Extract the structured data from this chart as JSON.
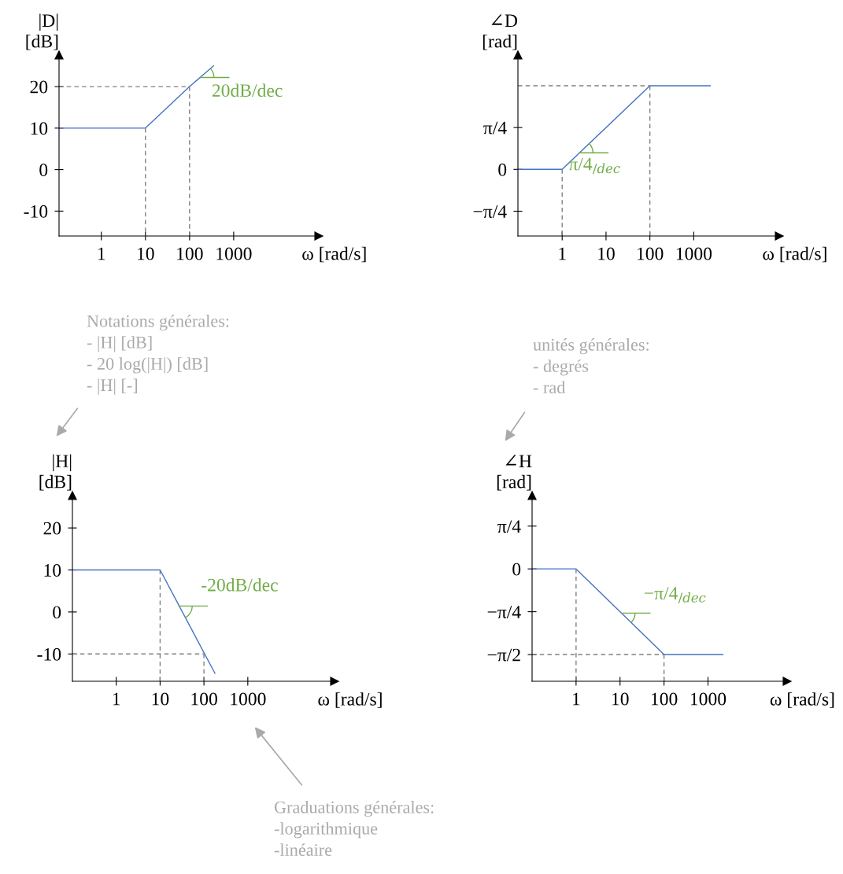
{
  "chart_data": [
    {
      "type": "line",
      "ylabel": "|D|\n[dB]",
      "xlabel": "ω [rad/s]",
      "log": "x",
      "xlim": [
        0.11,
        85000
      ],
      "ylim": [
        -16,
        27.6
      ],
      "xticks": [
        1,
        10,
        100,
        1000
      ],
      "yticks": [
        -10,
        0,
        10,
        20
      ],
      "grid": false,
      "legend": false,
      "marker": "none",
      "series": [
        {
          "color": "#4472c4",
          "line_style": "solid",
          "x": [
            0.11,
            10,
            100,
            350
          ],
          "values": [
            10,
            10,
            20,
            25
          ]
        },
        {
          "color": "#808080",
          "line_style": "dashed",
          "x": [
            0.11,
            100
          ],
          "values": [
            20,
            20
          ]
        },
        {
          "color": "#808080",
          "line_style": "dashed",
          "x": [
            10,
            10
          ],
          "values": [
            10,
            -16
          ]
        },
        {
          "color": "#808080",
          "line_style": "dashed",
          "x": [
            100,
            100
          ],
          "values": [
            20,
            -16
          ]
        }
      ],
      "annotations": [
        {
          "text": "20dB/dec",
          "x": 178,
          "y": 22.2
        }
      ]
    },
    {
      "type": "line",
      "ylabel": "∠D\n[rad]",
      "xlabel": "ω [rad/s]",
      "log": "x",
      "xlim": [
        0.098,
        89000
      ],
      "ylim": [
        -1.25,
        2.145
      ],
      "xticks": [
        1,
        10,
        100,
        1000
      ],
      "yticks": [
        {
          "value": -0.785,
          "label": "−π/4"
        },
        0,
        {
          "value": 0.785,
          "label": "π/4"
        }
      ],
      "grid": false,
      "legend": false,
      "marker": "none",
      "series": [
        {
          "color": "#4472c4",
          "line_style": "solid",
          "x": [
            0.098,
            1,
            100,
            2370
          ],
          "values": [
            0,
            0,
            1.57,
            1.57
          ]
        },
        {
          "color": "#808080",
          "line_style": "dashed",
          "x": [
            0.098,
            100
          ],
          "values": [
            1.57,
            1.57
          ]
        },
        {
          "color": "#808080",
          "line_style": "dashed",
          "x": [
            1,
            1
          ],
          "values": [
            0,
            -1.25
          ]
        },
        {
          "color": "#808080",
          "line_style": "dashed",
          "x": [
            100,
            100
          ],
          "values": [
            1.57,
            -1.25
          ]
        }
      ],
      "annotations": [
        {
          "text": "π/4$_{/dec}$",
          "x": 2.5,
          "y": 0.31
        }
      ]
    },
    {
      "type": "line",
      "ylabel": "|H|\n[dB]",
      "xlabel": "ω [rad/s]",
      "log": "x",
      "xlim": [
        0.1,
        95000
      ],
      "ylim": [
        -16.5,
        27.7
      ],
      "xticks": [
        1,
        10,
        100,
        1000
      ],
      "yticks": [
        -10,
        0,
        10,
        20
      ],
      "grid": false,
      "legend": false,
      "marker": "none",
      "series": [
        {
          "color": "#4472c4",
          "line_style": "solid",
          "x": [
            0.1,
            10,
            178
          ],
          "values": [
            10,
            10,
            -14.6
          ]
        },
        {
          "color": "#808080",
          "line_style": "dashed",
          "x": [
            0.1,
            100
          ],
          "values": [
            -10,
            -10
          ]
        },
        {
          "color": "#808080",
          "line_style": "dashed",
          "x": [
            10,
            10
          ],
          "values": [
            10,
            -16.5
          ]
        },
        {
          "color": "#808080",
          "line_style": "dashed",
          "x": [
            100,
            100
          ],
          "values": [
            -10,
            -16.5
          ]
        }
      ],
      "annotations": [
        {
          "text": "-20dB/dec",
          "x": 26.8,
          "y": 1.4
        },
        "Notations générales:\n- |H| [dB]\n- 20 log(|H|) [dB]\n- |H| [-]",
        "Graduations générales:\n-logarithmique\n-linéaire"
      ]
    },
    {
      "type": "line",
      "ylabel": "∠H\n[rad]",
      "xlabel": "ω [rad/s]",
      "log": "x",
      "xlim": [
        0.1,
        63000
      ],
      "ylim": [
        -2.06,
        1.344
      ],
      "xticks": [
        1,
        10,
        100,
        1000
      ],
      "yticks": [
        {
          "value": -1.571,
          "label": "−π/2"
        },
        {
          "value": -0.785,
          "label": "−π/4"
        },
        0,
        {
          "value": 0.785,
          "label": "π/4"
        }
      ],
      "grid": false,
      "legend": false,
      "marker": "none",
      "series": [
        {
          "color": "#4472c4",
          "line_style": "solid",
          "x": [
            0.1,
            1,
            100,
            2180
          ],
          "values": [
            0,
            0,
            -1.57,
            -1.57
          ]
        },
        {
          "color": "#808080",
          "line_style": "dashed",
          "x": [
            1,
            1
          ],
          "values": [
            0,
            -2.06
          ]
        },
        {
          "color": "#808080",
          "line_style": "dashed",
          "x": [
            0.1,
            100
          ],
          "values": [
            -1.57,
            -1.57
          ]
        },
        {
          "color": "#808080",
          "line_style": "dashed",
          "x": [
            100,
            100
          ],
          "values": [
            -1.57,
            -2.06
          ]
        }
      ],
      "annotations": [
        {
          "text": "−π/4$_{/dec}$",
          "x": 10.9,
          "y": -0.81
        },
        "unités générales:\n- degrés\n- rad"
      ]
    }
  ]
}
